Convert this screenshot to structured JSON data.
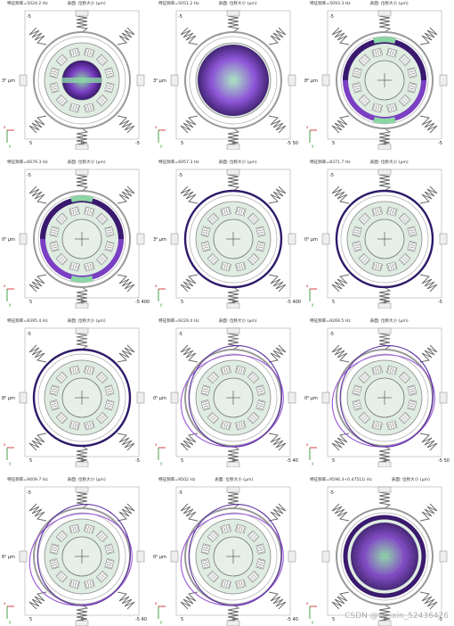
{
  "panels": [
    {
      "title": "特征频率=5024.2 Hz",
      "sub": "表面: 位移大小 (μm)",
      "yl": "3⁰ μm",
      "corner": "-5",
      "bl": "5",
      "bm": "0",
      "br": "-5",
      "mode": "disk-h",
      "colors": [
        "#3a1a6e",
        "#7a3fc2",
        "#8bd6a5"
      ]
    },
    {
      "title": "特征频率=5051.2 Hz",
      "sub": "表面: 位移大小 (μm)",
      "yl": "3⁰ μm",
      "corner": "-5",
      "bl": "5",
      "bm": "0",
      "br": "-5 50",
      "mode": "disk-v",
      "colors": [
        "#3a1a6e",
        "#8a4fd8",
        "#a8e6c0"
      ]
    },
    {
      "title": "特征频率=5093.3 Hz",
      "sub": "表面: 位移大小 (μm)",
      "yl": "8⁰ μm",
      "corner": "-5",
      "bl": "5",
      "bm": "0",
      "br": "-5",
      "mode": "ring-split",
      "colors": [
        "#3a1a6e",
        "#7a3fc2",
        "#8bd6a5"
      ]
    },
    {
      "title": "特征频率=6079.3 Hz",
      "sub": "表面: 位移大小 (μm)",
      "yl": "0⁰ μm",
      "corner": "-5",
      "bl": "5",
      "bm": "0",
      "br": "-5 400",
      "mode": "ring-split",
      "colors": [
        "#3a1a6e",
        "#7a3fc2",
        "#8bd6a5"
      ]
    },
    {
      "title": "特征频率=6957.3 Hz",
      "sub": "表面: 位移大小 (μm)",
      "yl": "3⁰ μm",
      "corner": "-5",
      "bl": "5",
      "bm": "0",
      "br": "-5 400",
      "mode": "ring-outer",
      "colors": [
        "#2e1a6a",
        "#5a2fa0",
        "#8bd6a5"
      ]
    },
    {
      "title": "特征频率=8371.7 Hz",
      "sub": "表面: 位移大小 (μm)",
      "yl": "0⁰ μm",
      "corner": "-5",
      "bl": "5",
      "bm": "0",
      "br": "-5",
      "mode": "ring-outer",
      "colors": [
        "#2e1a6a",
        "#5a2fa0",
        "#8bd6a5"
      ]
    },
    {
      "title": "特征频率=8395.4 Hz",
      "sub": "表面: 位移大小 (μm)",
      "yl": "8⁰ μm",
      "corner": "-5",
      "bl": "5",
      "bm": "0",
      "br": "-5",
      "mode": "ring-outer",
      "colors": [
        "#2e1a6a",
        "#5a2fa0",
        "#8bd6a5"
      ]
    },
    {
      "title": "特征频率=9229.4 Hz",
      "sub": "表面: 位移大小 (μm)",
      "yl": "0⁰ μm",
      "corner": "-5",
      "bl": "5",
      "bm": "0",
      "br": "-5 40",
      "mode": "wobble",
      "colors": [
        "#5a2fa0",
        "#9a5ad8",
        "#8bd6a5"
      ]
    },
    {
      "title": "特征频率=9269.5 Hz",
      "sub": "表面: 位移大小 (μm)",
      "yl": "0⁰ μm",
      "corner": "-5",
      "bl": "5",
      "bm": "0",
      "br": "-5 50",
      "mode": "wobble",
      "colors": [
        "#5a2fa0",
        "#9a5ad8",
        "#8bd6a5"
      ]
    },
    {
      "title": "特征频率=9409.7 Hz",
      "sub": "表面: 位移大小 (μm)",
      "yl": "6⁰ μm",
      "corner": "-5",
      "bl": "5",
      "bm": "0",
      "br": "-5 40",
      "mode": "wobble",
      "colors": [
        "#5a2fa0",
        "#9a5ad8",
        "#8bd6a5"
      ]
    },
    {
      "title": "特征频率=9502 Hz",
      "sub": "表面: 位移大小 (μm)",
      "yl": "0⁰ μm",
      "corner": "-5",
      "bl": "5",
      "bm": "0",
      "br": "-5 40",
      "mode": "wobble",
      "colors": [
        "#5a2fa0",
        "#9a5ad8",
        "#8bd6a5"
      ]
    },
    {
      "title": "特征频率=9596.3+0.47511i Hz",
      "sub": "表面: 位移大小 (μm)",
      "yl": "",
      "corner": "-5",
      "bl": "5",
      "bm": "0",
      "br": "-5",
      "mode": "ring-full",
      "colors": [
        "#3a1a6e",
        "#7a3fc2",
        "#8bd6a5"
      ]
    }
  ],
  "watermark": "CSDN @weixin_52436426"
}
